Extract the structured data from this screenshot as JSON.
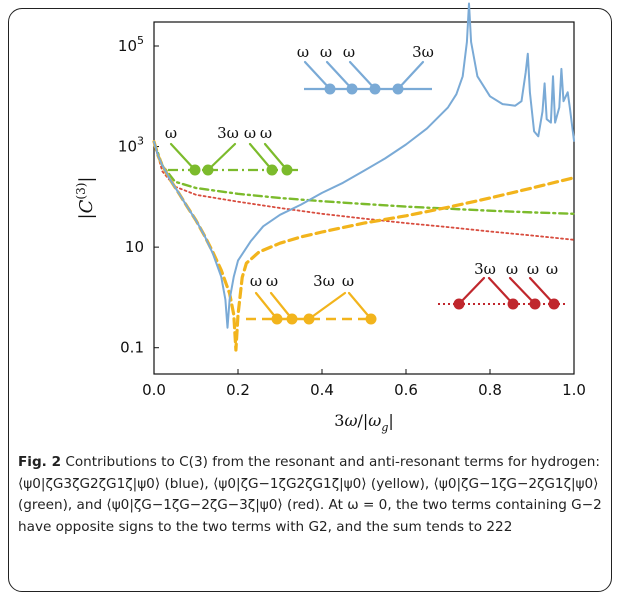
{
  "chart_data": {
    "type": "line",
    "x_axis": {
      "label": "3ω/|ω_g|",
      "range": [
        0,
        1.0
      ],
      "ticks": [
        0.0,
        0.2,
        0.4,
        0.6,
        0.8,
        1.0
      ],
      "tick_labels": [
        "0.0",
        "0.2",
        "0.4",
        "0.6",
        "0.8",
        "1.0"
      ]
    },
    "y_axis": {
      "label": "|C(3)|",
      "scale": "log",
      "range": [
        0.03,
        300000
      ],
      "ticks": [
        0.1,
        10,
        1000,
        100000
      ],
      "tick_labels": [
        "0.1",
        "10",
        "10^3",
        "10^5"
      ]
    },
    "series": [
      {
        "color": "#7aaad6",
        "style": "solid",
        "points": [
          [
            0.0,
            1250
          ],
          [
            0.01,
            650
          ],
          [
            0.02,
            420
          ],
          [
            0.04,
            210
          ],
          [
            0.06,
            115
          ],
          [
            0.08,
            62
          ],
          [
            0.1,
            34
          ],
          [
            0.12,
            17
          ],
          [
            0.14,
            7.5
          ],
          [
            0.16,
            2.6
          ],
          [
            0.17,
            0.9
          ],
          [
            0.175,
            0.25
          ],
          [
            0.18,
            0.9
          ],
          [
            0.19,
            2.6
          ],
          [
            0.2,
            5.4
          ],
          [
            0.23,
            13
          ],
          [
            0.26,
            26
          ],
          [
            0.3,
            44
          ],
          [
            0.35,
            70
          ],
          [
            0.4,
            120
          ],
          [
            0.45,
            190
          ],
          [
            0.5,
            330
          ],
          [
            0.55,
            580
          ],
          [
            0.6,
            1100
          ],
          [
            0.65,
            2300
          ],
          [
            0.7,
            6000
          ],
          [
            0.72,
            11000
          ],
          [
            0.735,
            25000
          ],
          [
            0.745,
            120000
          ],
          [
            0.75,
            700000
          ],
          [
            0.755,
            120000
          ],
          [
            0.77,
            25000
          ],
          [
            0.8,
            10000
          ],
          [
            0.83,
            7000
          ],
          [
            0.86,
            6500
          ],
          [
            0.875,
            8000
          ],
          [
            0.885,
            30000
          ],
          [
            0.89,
            70000
          ],
          [
            0.895,
            12000
          ],
          [
            0.905,
            2000
          ],
          [
            0.915,
            1600
          ],
          [
            0.925,
            5000
          ],
          [
            0.93,
            18000
          ],
          [
            0.935,
            3500
          ],
          [
            0.945,
            3000
          ],
          [
            0.95,
            25000
          ],
          [
            0.955,
            3000
          ],
          [
            0.965,
            6000
          ],
          [
            0.97,
            35000
          ],
          [
            0.975,
            8000
          ],
          [
            0.985,
            12000
          ],
          [
            0.99,
            6000
          ],
          [
            1.0,
            1300
          ]
        ]
      },
      {
        "color": "#f2b41c",
        "style": "dashed",
        "points": [
          [
            0.0,
            1250
          ],
          [
            0.01,
            650
          ],
          [
            0.02,
            420
          ],
          [
            0.04,
            210
          ],
          [
            0.06,
            115
          ],
          [
            0.08,
            62
          ],
          [
            0.1,
            34
          ],
          [
            0.12,
            17
          ],
          [
            0.14,
            8
          ],
          [
            0.16,
            3.5
          ],
          [
            0.18,
            1.2
          ],
          [
            0.19,
            0.45
          ],
          [
            0.195,
            0.09
          ],
          [
            0.2,
            0.45
          ],
          [
            0.21,
            2.5
          ],
          [
            0.22,
            4.8
          ],
          [
            0.25,
            8
          ],
          [
            0.3,
            12
          ],
          [
            0.35,
            16
          ],
          [
            0.4,
            20
          ],
          [
            0.5,
            30
          ],
          [
            0.6,
            42
          ],
          [
            0.7,
            62
          ],
          [
            0.8,
            95
          ],
          [
            0.9,
            150
          ],
          [
            1.0,
            240
          ]
        ]
      },
      {
        "color": "#7cbb2c",
        "style": "dash-dot",
        "points": [
          [
            0.0,
            1250
          ],
          [
            0.02,
            420
          ],
          [
            0.05,
            200
          ],
          [
            0.1,
            150
          ],
          [
            0.2,
            115
          ],
          [
            0.3,
            95
          ],
          [
            0.4,
            82
          ],
          [
            0.5,
            72
          ],
          [
            0.6,
            64
          ],
          [
            0.7,
            58
          ],
          [
            0.8,
            53
          ],
          [
            0.9,
            49
          ],
          [
            1.0,
            46
          ]
        ]
      },
      {
        "color": "#d84c3e",
        "style": "dotted",
        "points": [
          [
            0.0,
            1200
          ],
          [
            0.02,
            320
          ],
          [
            0.05,
            160
          ],
          [
            0.1,
            110
          ],
          [
            0.2,
            80
          ],
          [
            0.3,
            60
          ],
          [
            0.4,
            46
          ],
          [
            0.5,
            37
          ],
          [
            0.6,
            30
          ],
          [
            0.7,
            25
          ],
          [
            0.8,
            20.5
          ],
          [
            0.9,
            17
          ],
          [
            1.0,
            14
          ]
        ]
      }
    ],
    "annotations": {
      "blue": [
        "ω",
        "ω",
        "ω",
        "3ω"
      ],
      "green": [
        "ω",
        "3ω",
        "ω",
        "ω"
      ],
      "yellow": [
        "ω",
        "ω",
        "3ω",
        "ω"
      ],
      "red": [
        "3ω",
        "ω",
        "ω",
        "ω"
      ]
    }
  },
  "caption": {
    "label": "Fig. 2",
    "text": "Contributions to C(3) from the resonant and anti-resonant terms for hydrogen: ⟨ψ0|ζG3ζG2ζG1ζ|ψ0⟩ (blue), ⟨ψ0|ζG−1ζG2ζG1ζ|ψ0⟩ (yellow), ⟨ψ0|ζG−1ζG−2ζG1ζ|ψ0⟩ (green), and ⟨ψ0|ζG−1ζG−2ζG−3ζ|ψ0⟩ (red). At ω = 0, the two terms containing G−2 have opposite signs to the two terms with G2, and the sum tends to 222"
  }
}
